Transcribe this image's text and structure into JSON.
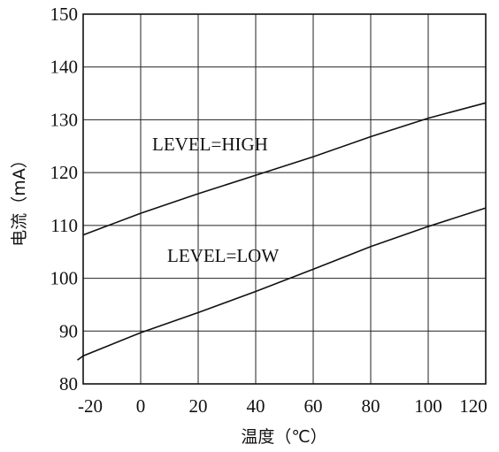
{
  "chart_data": {
    "type": "line",
    "xlabel": "温度（℃）",
    "ylabel": "电流（mA）",
    "xlim": [
      -20,
      120
    ],
    "ylim": [
      80,
      150
    ],
    "x_ticks": [
      -20,
      0,
      20,
      40,
      60,
      80,
      100,
      120
    ],
    "y_ticks": [
      80,
      90,
      100,
      110,
      120,
      130,
      140,
      150
    ],
    "grid": true,
    "series": [
      {
        "name": "LEVEL=HIGH",
        "x": [
          -20,
          0,
          20,
          40,
          60,
          80,
          100,
          120
        ],
        "values": [
          108.2,
          112.3,
          116.0,
          119.5,
          123.0,
          126.8,
          130.3,
          133.2
        ]
      },
      {
        "name": "LEVEL=LOW",
        "x": [
          -22,
          -20,
          0,
          20,
          40,
          60,
          80,
          100,
          120
        ],
        "values": [
          84.5,
          85.3,
          89.7,
          93.5,
          97.5,
          101.7,
          106.0,
          109.8,
          113.3
        ]
      }
    ]
  }
}
